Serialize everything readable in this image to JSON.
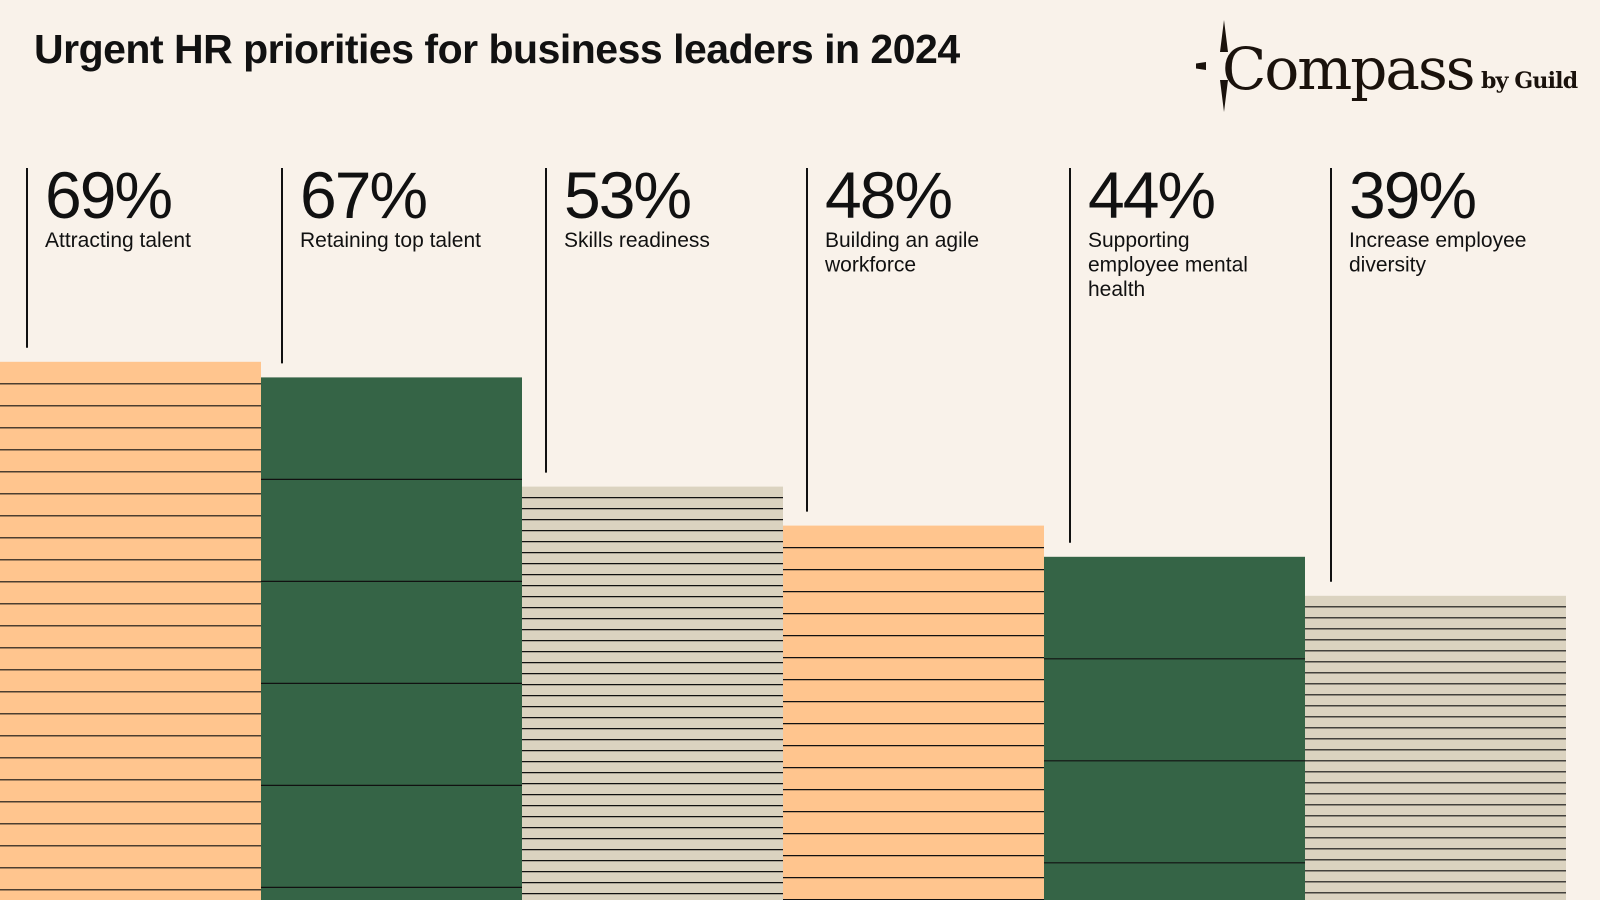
{
  "header": {
    "title": "Urgent HR priorities for business leaders in 2024"
  },
  "logo": {
    "word": "Compass",
    "by": "by Guild",
    "icon": "compass-star-icon"
  },
  "colors": {
    "background": "#f9f2ea",
    "peach": "#ffc58e",
    "green": "#356446",
    "beige": "#dbd3c0",
    "line": "#111111"
  },
  "chart_data": {
    "type": "bar",
    "title": "Urgent HR priorities for business leaders in 2024",
    "categories": [
      "Attracting talent",
      "Retaining top talent",
      "Skills readiness",
      "Building an agile workforce",
      "Supporting employee mental health",
      "Increase employee diversity"
    ],
    "category_lines": [
      [
        "Attracting talent"
      ],
      [
        "Retaining top talent"
      ],
      [
        "Skills readiness"
      ],
      [
        "Building an agile",
        "workforce"
      ],
      [
        "Supporting",
        "employee mental",
        "health"
      ],
      [
        "Increase employee",
        "diversity"
      ]
    ],
    "values": [
      69,
      67,
      53,
      48,
      44,
      39
    ],
    "value_labels": [
      "69%",
      "67%",
      "53%",
      "48%",
      "44%",
      "39%"
    ],
    "unit": "%",
    "bar_styles": [
      "peach",
      "green",
      "beige",
      "peach",
      "green",
      "beige"
    ],
    "grid": false,
    "legend": "none"
  }
}
